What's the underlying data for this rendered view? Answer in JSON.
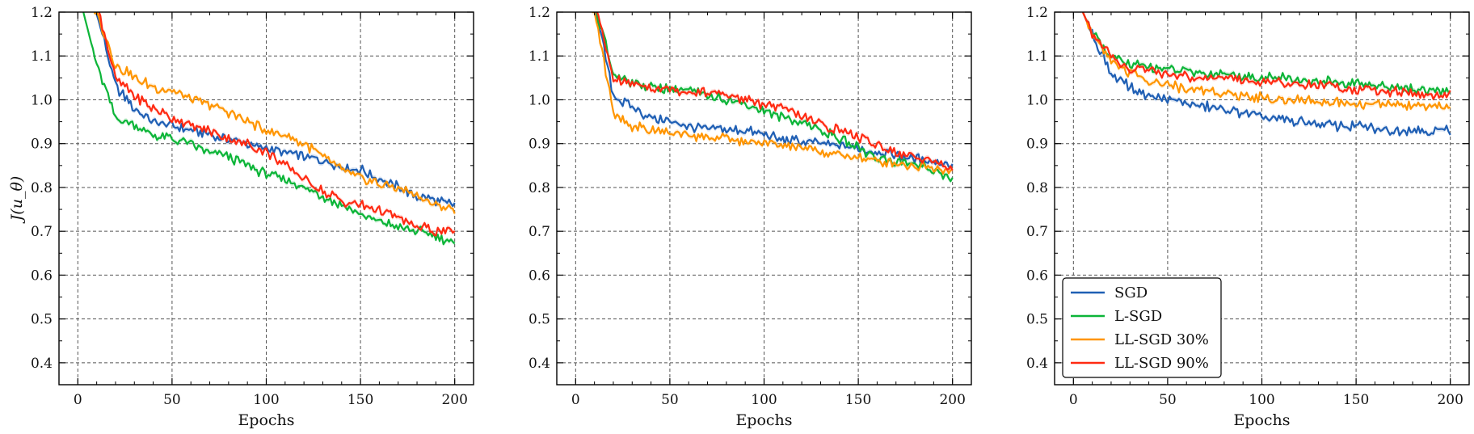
{
  "chart_data": [
    {
      "type": "line",
      "title": "",
      "xlabel": "Epochs",
      "ylabel": "J(u_θ)",
      "xlim": [
        -10,
        210
      ],
      "ylim": [
        0.35,
        1.2
      ],
      "xticks": [
        0,
        50,
        100,
        150,
        200
      ],
      "yticks": [
        0.4,
        0.5,
        0.6,
        0.7,
        0.8,
        0.9,
        1.0,
        1.1,
        1.2
      ],
      "grid": true,
      "x": [
        0,
        10,
        20,
        30,
        40,
        50,
        60,
        70,
        80,
        90,
        100,
        110,
        120,
        130,
        140,
        150,
        160,
        170,
        180,
        190,
        200
      ],
      "series": [
        {
          "name": "SGD",
          "color": "#1f5fb4",
          "values": [
            1.25,
            1.2,
            1.03,
            0.98,
            0.95,
            0.94,
            0.93,
            0.92,
            0.91,
            0.9,
            0.89,
            0.88,
            0.87,
            0.86,
            0.85,
            0.84,
            0.82,
            0.8,
            0.78,
            0.77,
            0.76
          ]
        },
        {
          "name": "L-SGD",
          "color": "#0cb538",
          "values": [
            1.25,
            1.08,
            0.96,
            0.94,
            0.92,
            0.91,
            0.9,
            0.88,
            0.87,
            0.85,
            0.83,
            0.82,
            0.8,
            0.78,
            0.76,
            0.74,
            0.72,
            0.71,
            0.7,
            0.69,
            0.67
          ]
        },
        {
          "name": "LL-SGD 30%",
          "color": "#ff9500",
          "values": [
            1.25,
            1.2,
            1.08,
            1.05,
            1.03,
            1.02,
            1.0,
            0.99,
            0.97,
            0.95,
            0.93,
            0.92,
            0.9,
            0.87,
            0.84,
            0.82,
            0.81,
            0.8,
            0.78,
            0.76,
            0.75
          ]
        },
        {
          "name": "LL-SGD 90%",
          "color": "#ff2a12",
          "values": [
            1.25,
            1.22,
            1.05,
            1.01,
            0.98,
            0.96,
            0.94,
            0.93,
            0.91,
            0.9,
            0.88,
            0.85,
            0.82,
            0.79,
            0.77,
            0.76,
            0.75,
            0.73,
            0.71,
            0.7,
            0.7
          ]
        }
      ]
    },
    {
      "type": "line",
      "title": "",
      "xlabel": "Epochs",
      "ylabel": "",
      "xlim": [
        -10,
        210
      ],
      "ylim": [
        0.35,
        1.2
      ],
      "xticks": [
        0,
        50,
        100,
        150,
        200
      ],
      "yticks": [
        0.4,
        0.5,
        0.6,
        0.7,
        0.8,
        0.9,
        1.0,
        1.1,
        1.2
      ],
      "grid": true,
      "x": [
        0,
        10,
        20,
        30,
        40,
        50,
        60,
        70,
        80,
        90,
        100,
        110,
        120,
        130,
        140,
        150,
        160,
        170,
        180,
        190,
        200
      ],
      "series": [
        {
          "name": "SGD",
          "color": "#1f5fb4",
          "values": [
            1.25,
            1.22,
            1.01,
            0.98,
            0.96,
            0.95,
            0.94,
            0.935,
            0.93,
            0.93,
            0.92,
            0.91,
            0.905,
            0.9,
            0.895,
            0.89,
            0.88,
            0.875,
            0.865,
            0.86,
            0.85
          ]
        },
        {
          "name": "L-SGD",
          "color": "#0cb538",
          "values": [
            1.25,
            1.22,
            1.06,
            1.04,
            1.03,
            1.025,
            1.02,
            1.01,
            1.0,
            0.99,
            0.975,
            0.96,
            0.95,
            0.93,
            0.91,
            0.89,
            0.87,
            0.86,
            0.85,
            0.84,
            0.82
          ]
        },
        {
          "name": "LL-SGD 30%",
          "color": "#ff9500",
          "values": [
            1.25,
            1.2,
            0.97,
            0.94,
            0.93,
            0.925,
            0.92,
            0.915,
            0.91,
            0.905,
            0.9,
            0.895,
            0.89,
            0.88,
            0.875,
            0.87,
            0.86,
            0.855,
            0.85,
            0.845,
            0.84
          ]
        },
        {
          "name": "LL-SGD 90%",
          "color": "#ff2a12",
          "values": [
            1.25,
            1.22,
            1.05,
            1.035,
            1.03,
            1.025,
            1.02,
            1.015,
            1.01,
            1.0,
            0.99,
            0.98,
            0.96,
            0.945,
            0.93,
            0.915,
            0.9,
            0.88,
            0.87,
            0.86,
            0.845
          ]
        }
      ]
    },
    {
      "type": "line",
      "title": "",
      "xlabel": "Epochs",
      "ylabel": "",
      "xlim": [
        -10,
        210
      ],
      "ylim": [
        0.35,
        1.2
      ],
      "xticks": [
        0,
        50,
        100,
        150,
        200
      ],
      "yticks": [
        0.4,
        0.5,
        0.6,
        0.7,
        0.8,
        0.9,
        1.0,
        1.1,
        1.2
      ],
      "grid": true,
      "legend": "bottom-left",
      "x": [
        0,
        10,
        20,
        30,
        40,
        50,
        60,
        70,
        80,
        90,
        100,
        110,
        120,
        130,
        140,
        150,
        160,
        170,
        180,
        190,
        200
      ],
      "series": [
        {
          "name": "SGD",
          "color": "#1f5fb4",
          "values": [
            1.25,
            1.15,
            1.06,
            1.03,
            1.01,
            1.0,
            0.99,
            0.985,
            0.975,
            0.97,
            0.96,
            0.955,
            0.95,
            0.945,
            0.94,
            0.94,
            0.935,
            0.93,
            0.93,
            0.93,
            0.93
          ]
        },
        {
          "name": "L-SGD",
          "color": "#0cb538",
          "values": [
            1.25,
            1.15,
            1.1,
            1.08,
            1.075,
            1.07,
            1.065,
            1.06,
            1.06,
            1.055,
            1.05,
            1.05,
            1.045,
            1.04,
            1.04,
            1.035,
            1.035,
            1.03,
            1.025,
            1.02,
            1.02
          ]
        },
        {
          "name": "LL-SGD 30%",
          "color": "#ff9500",
          "values": [
            1.25,
            1.15,
            1.09,
            1.06,
            1.045,
            1.035,
            1.025,
            1.02,
            1.015,
            1.01,
            1.005,
            1.0,
            1.0,
            0.995,
            0.995,
            0.99,
            0.99,
            0.99,
            0.985,
            0.985,
            0.985
          ]
        },
        {
          "name": "LL-SGD 90%",
          "color": "#ff2a12",
          "values": [
            1.25,
            1.15,
            1.1,
            1.07,
            1.065,
            1.06,
            1.055,
            1.05,
            1.05,
            1.045,
            1.04,
            1.04,
            1.035,
            1.035,
            1.03,
            1.025,
            1.02,
            1.02,
            1.015,
            1.01,
            1.01
          ]
        }
      ]
    }
  ]
}
